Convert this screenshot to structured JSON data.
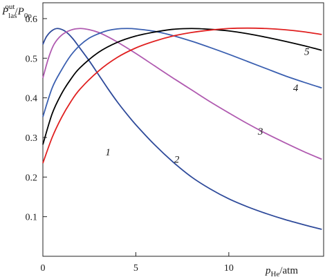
{
  "chart_data": {
    "type": "line",
    "title": "",
    "ylabel": {
      "main": "P",
      "sub": "las",
      "sup": "out",
      "sep": "/",
      "main2": "P",
      "sub2": "0p"
    },
    "xlabel": {
      "main": "p",
      "sub": "He",
      "unit": "/atm"
    },
    "xlim": [
      0,
      15.1
    ],
    "ylim": [
      0,
      0.64
    ],
    "x_ticks": [
      0,
      5,
      10
    ],
    "x_tick_labels": [
      "0",
      "5",
      "10"
    ],
    "y_ticks": [
      0.1,
      0.2,
      0.3,
      0.4,
      0.5,
      0.6
    ],
    "y_tick_labels": [
      "0.1",
      "0.2",
      "0.3",
      "0.4",
      "0.5",
      "0.6"
    ],
    "grid": false,
    "legend": "none",
    "series": [
      {
        "name": "1",
        "color": "#2e4a9a",
        "x": [
          0,
          0.2,
          0.5,
          0.8,
          1.2,
          1.6,
          2.0,
          2.5,
          3.0,
          3.5,
          4.0,
          4.5,
          5.0,
          6.0,
          7.0,
          8.0,
          9.0,
          10.0,
          11.0,
          12.0,
          13.0,
          14.0,
          15.0
        ],
        "y": [
          0.535,
          0.555,
          0.57,
          0.575,
          0.568,
          0.55,
          0.525,
          0.493,
          0.458,
          0.423,
          0.39,
          0.36,
          0.332,
          0.282,
          0.238,
          0.2,
          0.17,
          0.145,
          0.125,
          0.108,
          0.093,
          0.08,
          0.068
        ]
      },
      {
        "name": "2",
        "color": "#b05ab0",
        "x": [
          0,
          0.3,
          0.6,
          1.0,
          1.5,
          2.0,
          2.5,
          3.0,
          3.5,
          4.0,
          5.0,
          6.0,
          7.0,
          8.0,
          9.0,
          10.0,
          11.0,
          12.0,
          13.0,
          14.0,
          15.0
        ],
        "y": [
          0.45,
          0.5,
          0.535,
          0.558,
          0.571,
          0.575,
          0.572,
          0.565,
          0.554,
          0.541,
          0.512,
          0.481,
          0.45,
          0.42,
          0.39,
          0.362,
          0.335,
          0.31,
          0.287,
          0.265,
          0.245
        ]
      },
      {
        "name": "3",
        "color": "#3a5fb0",
        "x": [
          0,
          0.5,
          1.0,
          1.5,
          2.0,
          2.5,
          3.0,
          3.5,
          4.0,
          4.5,
          5.0,
          6.0,
          7.0,
          8.0,
          9.0,
          10.0,
          11.0,
          12.0,
          13.0,
          14.0,
          15.0
        ],
        "y": [
          0.352,
          0.425,
          0.47,
          0.507,
          0.533,
          0.551,
          0.562,
          0.57,
          0.574,
          0.575,
          0.574,
          0.568,
          0.557,
          0.543,
          0.527,
          0.51,
          0.492,
          0.474,
          0.456,
          0.44,
          0.425
        ]
      },
      {
        "name": "4",
        "color": "#000000",
        "x": [
          0,
          0.5,
          1.0,
          1.5,
          2.0,
          3.0,
          4.0,
          5.0,
          6.0,
          7.0,
          8.0,
          9.0,
          10.0,
          11.0,
          12.0,
          13.0,
          14.0,
          15.0
        ],
        "y": [
          0.282,
          0.36,
          0.41,
          0.447,
          0.476,
          0.515,
          0.54,
          0.556,
          0.566,
          0.573,
          0.575,
          0.573,
          0.569,
          0.562,
          0.553,
          0.543,
          0.532,
          0.52
        ]
      },
      {
        "name": "5",
        "color": "#e02020",
        "x": [
          0,
          0.5,
          1.0,
          1.5,
          2.0,
          3.0,
          4.0,
          5.0,
          6.0,
          7.0,
          8.0,
          9.0,
          10.0,
          11.0,
          12.0,
          13.0,
          14.0,
          15.0
        ],
        "y": [
          0.235,
          0.3,
          0.35,
          0.39,
          0.422,
          0.468,
          0.502,
          0.526,
          0.543,
          0.556,
          0.565,
          0.571,
          0.575,
          0.576,
          0.575,
          0.572,
          0.567,
          0.56
        ]
      }
    ],
    "curve_labels": [
      {
        "text": "1",
        "series": "1",
        "x": 3.5,
        "y": 0.255
      },
      {
        "text": "2",
        "series": "2",
        "x": 7.2,
        "y": 0.236
      },
      {
        "text": "3",
        "series": "3",
        "x": 11.7,
        "y": 0.307
      },
      {
        "text": "4",
        "series": "4",
        "x": 13.6,
        "y": 0.417
      },
      {
        "text": "5",
        "series": "5",
        "x": 14.2,
        "y": 0.508
      }
    ]
  }
}
